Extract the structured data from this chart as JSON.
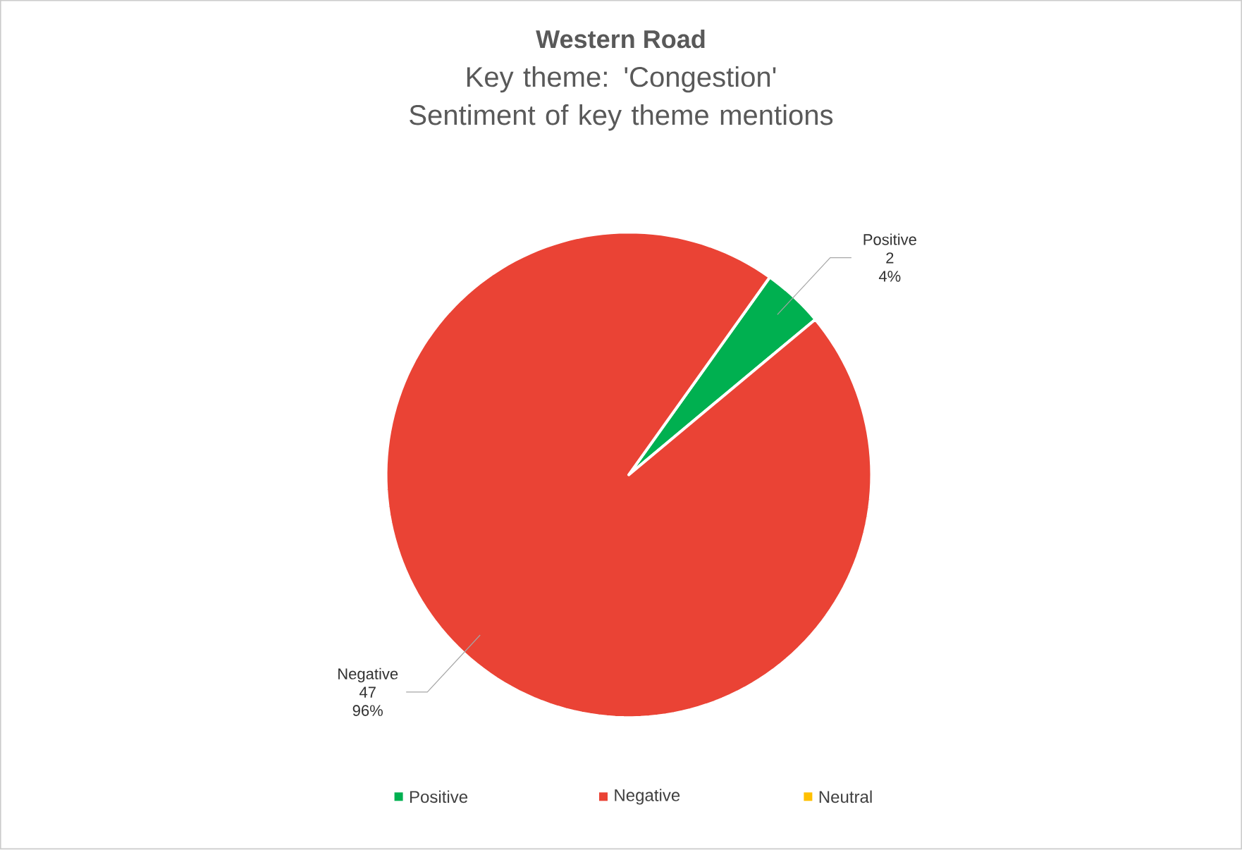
{
  "chart_data": {
    "type": "pie",
    "title": "Western Road",
    "subtitle": "Key theme: 'Congestion' Sentiment of key theme mentions",
    "categories": [
      "Positive",
      "Negative",
      "Neutral"
    ],
    "values": [
      2,
      47,
      0
    ],
    "colors": [
      "#00b050",
      "#ea4335",
      "#ffc000"
    ],
    "value_labels": [
      "2 4%",
      "47 96%",
      null
    ],
    "legend": "bottom"
  }
}
